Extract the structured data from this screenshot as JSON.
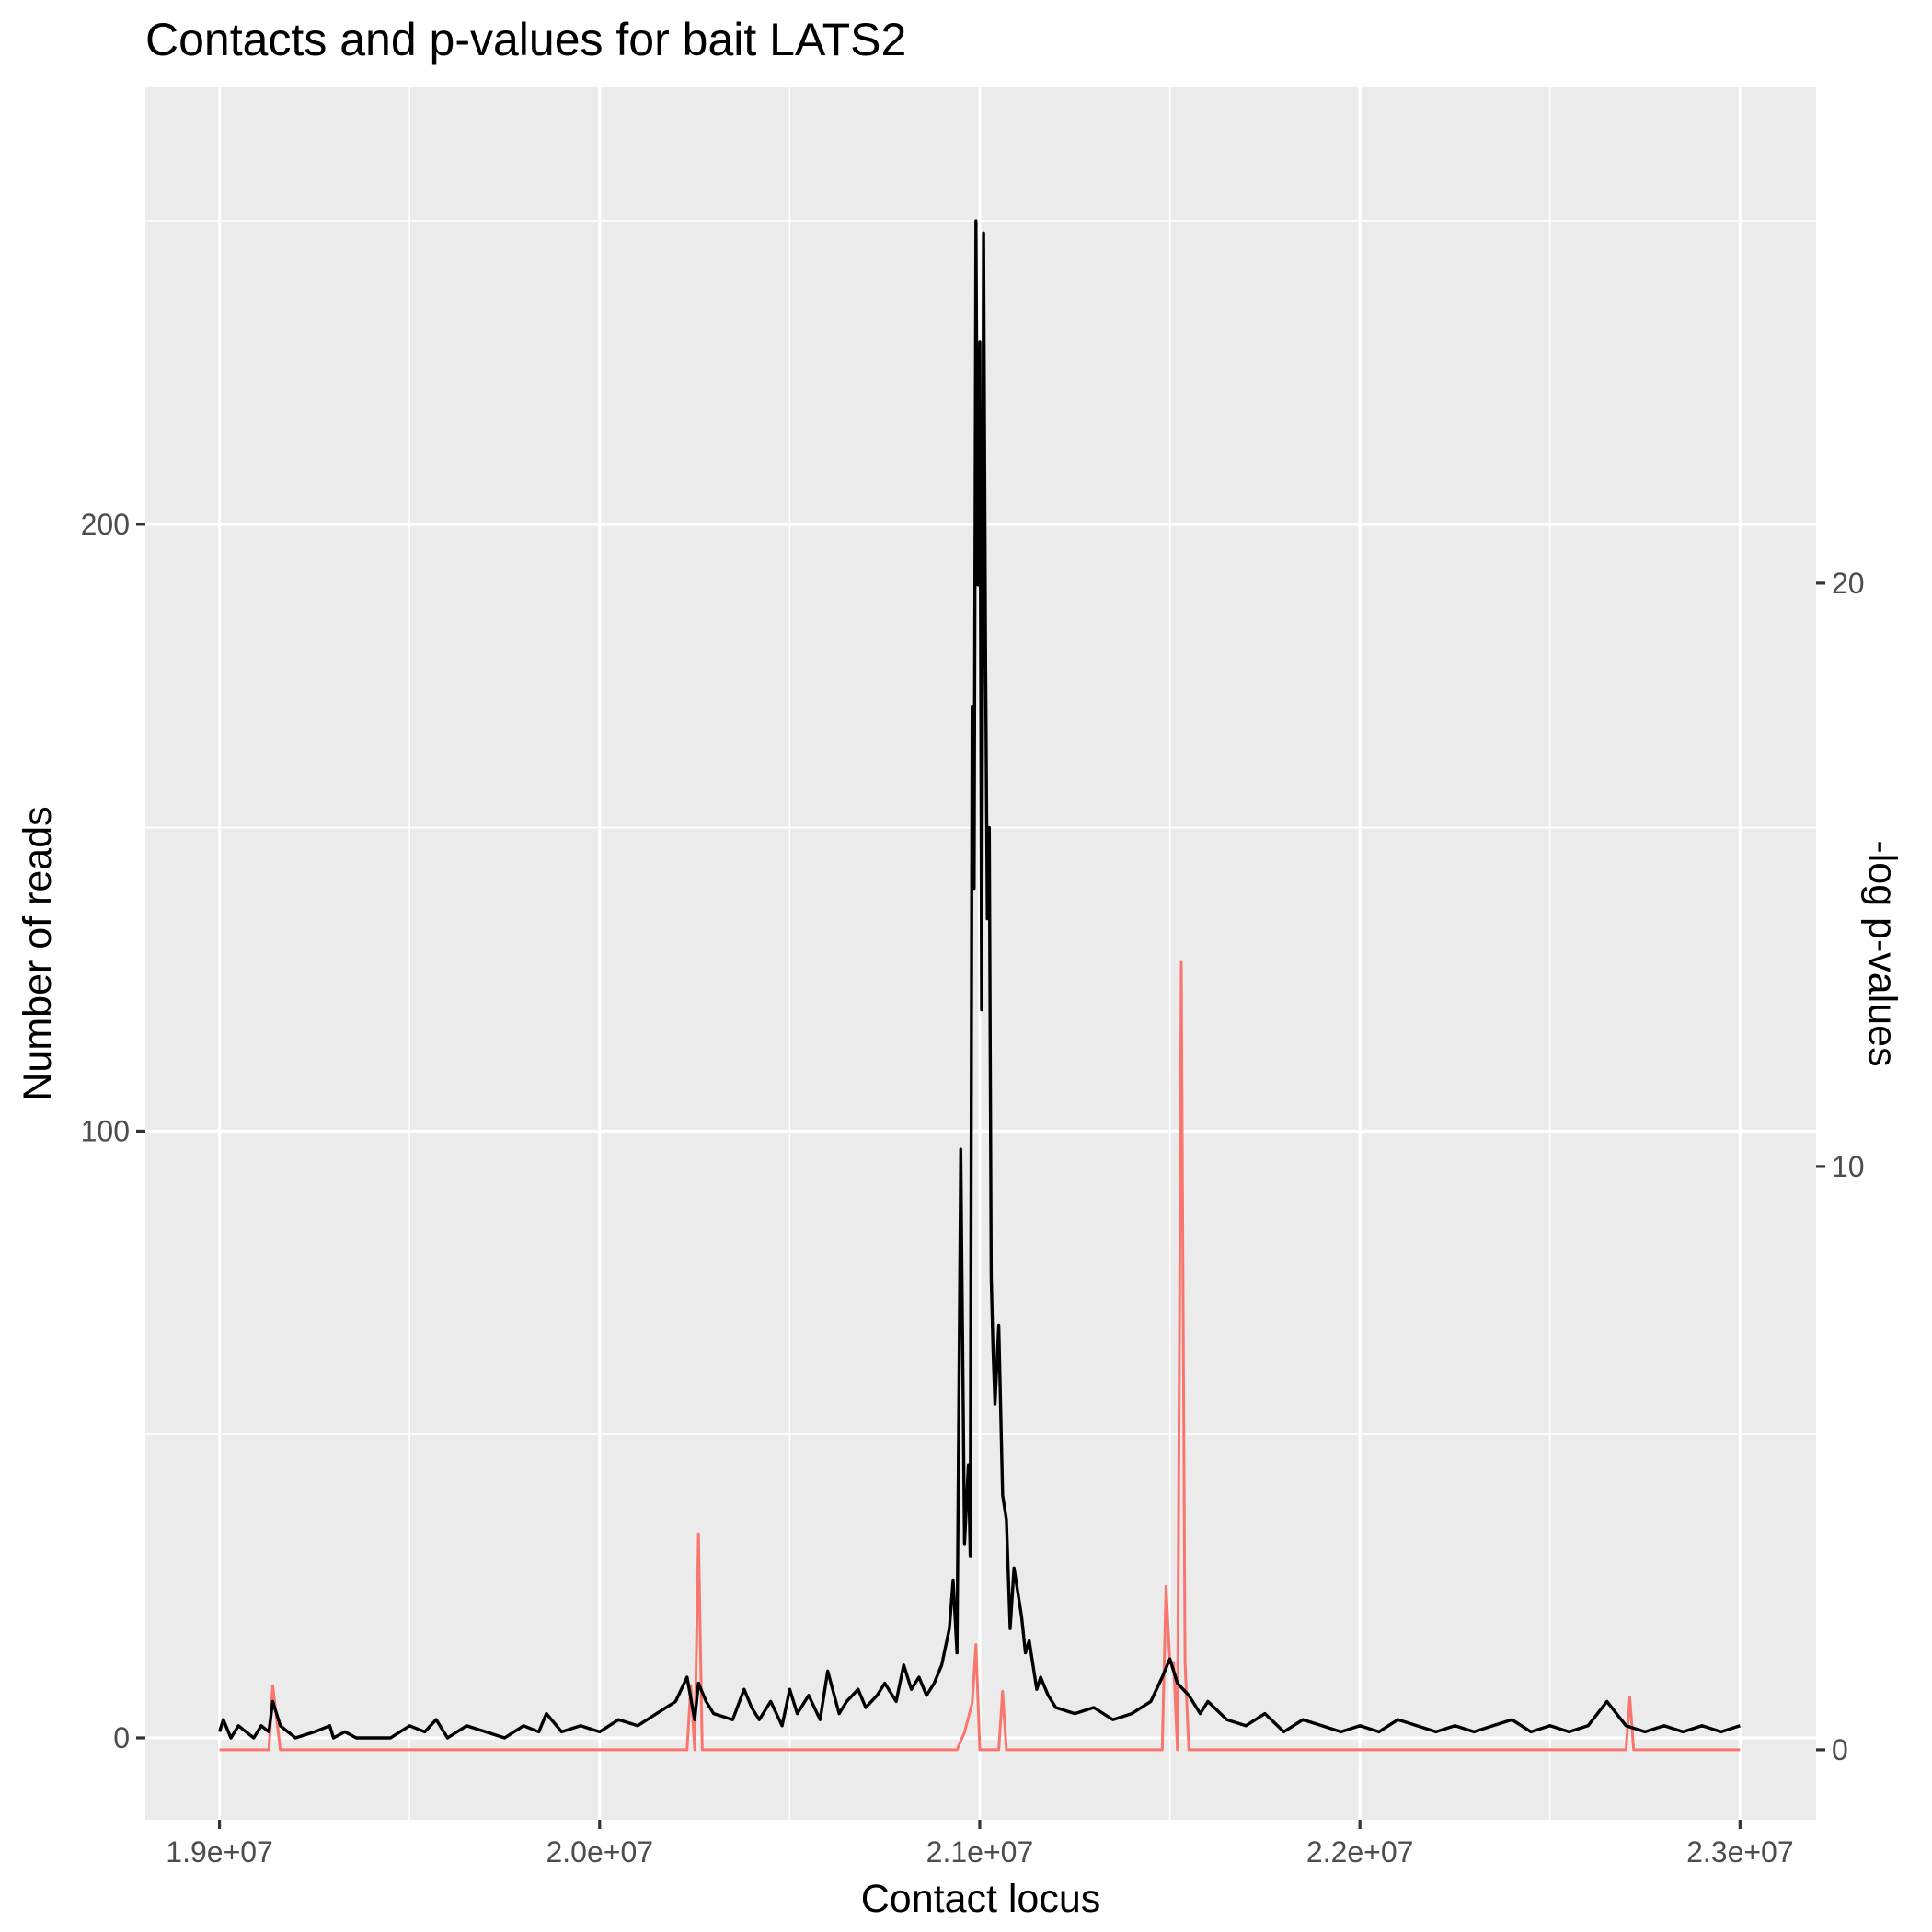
{
  "chart_data": {
    "type": "line",
    "title": "Contacts and p-values for bait LATS2",
    "xlabel": "Contact locus",
    "ylabel": "Number of reads",
    "y2label": "-log p-values",
    "xlim": [
      18805000,
      23200000
    ],
    "ylim": [
      -13.5,
      272
    ],
    "y2lim": [
      -1.2,
      28.5
    ],
    "x_ticks": [
      19000000,
      20000000,
      21000000,
      22000000,
      23000000
    ],
    "x_tick_labels": [
      "1.9e+07",
      "2.0e+07",
      "2.1e+07",
      "2.2e+07",
      "2.3e+07"
    ],
    "y_ticks": [
      0,
      100,
      200
    ],
    "y_tick_labels": [
      "0",
      "100",
      "200"
    ],
    "y2_ticks": [
      0,
      10,
      20
    ],
    "y2_tick_labels": [
      "0",
      "10",
      "20"
    ],
    "series": [
      {
        "name": "Number of reads",
        "axis": "left",
        "color": "#000000",
        "x": [
          19000000,
          19010000,
          19030000,
          19050000,
          19070000,
          19090000,
          19110000,
          19130000,
          19140000,
          19160000,
          19180000,
          19200000,
          19250000,
          19290000,
          19300000,
          19330000,
          19360000,
          19450000,
          19500000,
          19540000,
          19570000,
          19600000,
          19650000,
          19700000,
          19750000,
          19800000,
          19840000,
          19860000,
          19900000,
          19950000,
          20000000,
          20050000,
          20100000,
          20150000,
          20200000,
          20230000,
          20250000,
          20260000,
          20280000,
          20300000,
          20350000,
          20380000,
          20400000,
          20420000,
          20450000,
          20480000,
          20500000,
          20520000,
          20550000,
          20580000,
          20600000,
          20630000,
          20650000,
          20680000,
          20700000,
          20730000,
          20750000,
          20780000,
          20800000,
          20820000,
          20840000,
          20860000,
          20880000,
          20900000,
          20920000,
          20930000,
          20940000,
          20950000,
          20960000,
          20970000,
          20975000,
          20980000,
          20985000,
          20990000,
          20995000,
          21000000,
          21005000,
          21010000,
          21015000,
          21020000,
          21025000,
          21030000,
          21035000,
          21040000,
          21050000,
          21060000,
          21070000,
          21080000,
          21090000,
          21100000,
          21110000,
          21120000,
          21130000,
          21140000,
          21150000,
          21160000,
          21180000,
          21200000,
          21250000,
          21300000,
          21350000,
          21400000,
          21450000,
          21480000,
          21500000,
          21520000,
          21550000,
          21580000,
          21600000,
          21650000,
          21700000,
          21750000,
          21800000,
          21850000,
          21900000,
          21950000,
          22000000,
          22050000,
          22100000,
          22150000,
          22200000,
          22250000,
          22300000,
          22350000,
          22400000,
          22450000,
          22500000,
          22550000,
          22600000,
          22650000,
          22700000,
          22750000,
          22800000,
          22850000,
          22900000,
          22950000,
          23000000
        ],
        "values": [
          1,
          3,
          0,
          2,
          1,
          0,
          2,
          1,
          6,
          2,
          1,
          0,
          1,
          2,
          0,
          1,
          0,
          0,
          2,
          1,
          3,
          0,
          2,
          1,
          0,
          2,
          1,
          4,
          1,
          2,
          1,
          3,
          2,
          4,
          6,
          10,
          3,
          9,
          6,
          4,
          3,
          8,
          5,
          3,
          6,
          2,
          8,
          4,
          7,
          3,
          11,
          4,
          6,
          8,
          5,
          7,
          9,
          6,
          12,
          8,
          10,
          7,
          9,
          12,
          18,
          26,
          14,
          97,
          32,
          45,
          30,
          170,
          140,
          250,
          190,
          230,
          120,
          248,
          180,
          135,
          150,
          76,
          64,
          55,
          68,
          40,
          36,
          18,
          28,
          24,
          20,
          14,
          16,
          12,
          8,
          10,
          7,
          5,
          4,
          5,
          3,
          4,
          6,
          10,
          13,
          9,
          7,
          4,
          6,
          3,
          2,
          4,
          1,
          3,
          2,
          1,
          2,
          1,
          3,
          2,
          1,
          2,
          1,
          2,
          3,
          1,
          2,
          1,
          2,
          6,
          2,
          1,
          2,
          1,
          2,
          1,
          2
        ]
      },
      {
        "name": "-log p-values",
        "axis": "right",
        "color": "#f8766d",
        "x": [
          19000000,
          19100000,
          19130000,
          19140000,
          19160000,
          19250000,
          19300000,
          19500000,
          20000000,
          20200000,
          20230000,
          20240000,
          20250000,
          20260000,
          20270000,
          20300000,
          20500000,
          20900000,
          20940000,
          20960000,
          20980000,
          20990000,
          21000000,
          21030000,
          21050000,
          21060000,
          21070000,
          21100000,
          21200000,
          21480000,
          21490000,
          21500000,
          21510000,
          21520000,
          21530000,
          21540000,
          21550000,
          21600000,
          21700000,
          22000000,
          22500000,
          22700000,
          22710000,
          22720000,
          23000000
        ],
        "values": [
          0,
          0,
          0,
          1.1,
          0,
          0,
          0,
          0,
          0,
          0,
          0,
          1.1,
          0,
          3.7,
          0,
          0,
          0,
          0,
          0,
          0.3,
          0.8,
          1.8,
          0,
          0,
          0,
          1.0,
          0,
          0,
          0,
          0,
          2.8,
          1.5,
          1.5,
          0,
          13.5,
          1.5,
          0,
          0,
          0,
          0,
          0,
          0,
          0.9,
          0,
          0
        ]
      }
    ]
  }
}
